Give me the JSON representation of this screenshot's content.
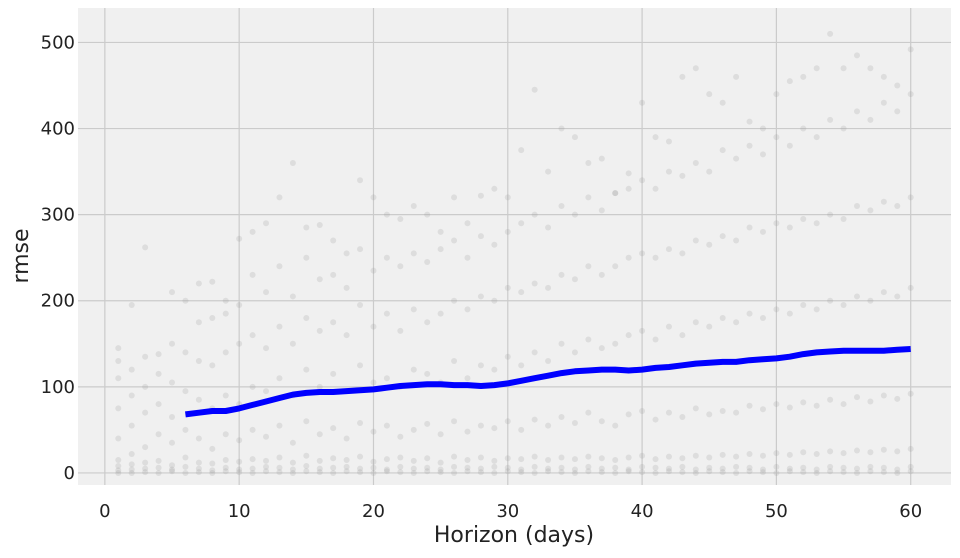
{
  "chart_data": {
    "type": "scatter",
    "title": "",
    "xlabel": "Horizon (days)",
    "ylabel": "rmse",
    "xlim": [
      -2,
      63
    ],
    "ylim": [
      -14,
      540
    ],
    "xticks": [
      0,
      10,
      20,
      30,
      40,
      50,
      60
    ],
    "yticks": [
      0,
      100,
      200,
      300,
      400,
      500
    ],
    "grid": true,
    "legend": "none",
    "colors": {
      "background": "#f0f0f0",
      "grid": "#cbcbcb",
      "points": "#999999",
      "line": "#0000ff"
    },
    "series": [
      {
        "kind": "scatter",
        "x": [
          1,
          1,
          1,
          1,
          1,
          1,
          1,
          1,
          1,
          2,
          2,
          2,
          2,
          2,
          2,
          2,
          2,
          3,
          3,
          3,
          3,
          3,
          3,
          3,
          3,
          4,
          4,
          4,
          4,
          4,
          4,
          4,
          5,
          5,
          5,
          5,
          5,
          5,
          5,
          5,
          6,
          6,
          6,
          6,
          6,
          6,
          6,
          7,
          7,
          7,
          7,
          7,
          7,
          7,
          7,
          8,
          8,
          8,
          8,
          8,
          8,
          8,
          8,
          9,
          9,
          9,
          9,
          9,
          9,
          9,
          9,
          10,
          10,
          10,
          10,
          10,
          10,
          10,
          10,
          11,
          11,
          11,
          11,
          11,
          11,
          11,
          11,
          12,
          12,
          12,
          12,
          12,
          12,
          12,
          12,
          13,
          13,
          13,
          13,
          13,
          13,
          13,
          13,
          14,
          14,
          14,
          14,
          14,
          14,
          14,
          14,
          15,
          15,
          15,
          15,
          15,
          15,
          15,
          15,
          16,
          16,
          16,
          16,
          16,
          16,
          16,
          16,
          17,
          17,
          17,
          17,
          17,
          17,
          17,
          17,
          18,
          18,
          18,
          18,
          18,
          18,
          18,
          18,
          19,
          19,
          19,
          19,
          19,
          19,
          19,
          19,
          20,
          20,
          20,
          20,
          20,
          20,
          20,
          20,
          21,
          21,
          21,
          21,
          21,
          21,
          21,
          21,
          22,
          22,
          22,
          22,
          22,
          22,
          22,
          22,
          23,
          23,
          23,
          23,
          23,
          23,
          23,
          23,
          24,
          24,
          24,
          24,
          24,
          24,
          24,
          24,
          25,
          25,
          25,
          25,
          25,
          25,
          25,
          25,
          26,
          26,
          26,
          26,
          26,
          26,
          26,
          26,
          27,
          27,
          27,
          27,
          27,
          27,
          27,
          27,
          28,
          28,
          28,
          28,
          28,
          28,
          28,
          28,
          29,
          29,
          29,
          29,
          29,
          29,
          29,
          29,
          30,
          30,
          30,
          30,
          30,
          30,
          30,
          30,
          31,
          31,
          31,
          31,
          31,
          31,
          31,
          31,
          32,
          32,
          32,
          32,
          32,
          32,
          32,
          32,
          33,
          33,
          33,
          33,
          33,
          33,
          33,
          33,
          34,
          34,
          34,
          34,
          34,
          34,
          34,
          34,
          35,
          35,
          35,
          35,
          35,
          35,
          35,
          35,
          36,
          36,
          36,
          36,
          36,
          36,
          36,
          36,
          37,
          37,
          37,
          37,
          37,
          37,
          37,
          37,
          38,
          38,
          38,
          38,
          38,
          38,
          38,
          38,
          39,
          39,
          39,
          39,
          39,
          39,
          39,
          39,
          40,
          40,
          40,
          40,
          40,
          40,
          40,
          40,
          41,
          41,
          41,
          41,
          41,
          41,
          41,
          41,
          42,
          42,
          42,
          42,
          42,
          42,
          42,
          42,
          43,
          43,
          43,
          43,
          43,
          43,
          43,
          43,
          44,
          44,
          44,
          44,
          44,
          44,
          44,
          44,
          45,
          45,
          45,
          45,
          45,
          45,
          45,
          45,
          46,
          46,
          46,
          46,
          46,
          46,
          46,
          46,
          47,
          47,
          47,
          47,
          47,
          47,
          47,
          47,
          48,
          48,
          48,
          48,
          48,
          48,
          48,
          48,
          49,
          49,
          49,
          49,
          49,
          49,
          49,
          49,
          50,
          50,
          50,
          50,
          50,
          50,
          50,
          50,
          51,
          51,
          51,
          51,
          51,
          51,
          51,
          51,
          52,
          52,
          52,
          52,
          52,
          52,
          52,
          52,
          53,
          53,
          53,
          53,
          53,
          53,
          53,
          53,
          54,
          54,
          54,
          54,
          54,
          54,
          54,
          54,
          55,
          55,
          55,
          55,
          55,
          55,
          55,
          55,
          56,
          56,
          56,
          56,
          56,
          56,
          56,
          56,
          57,
          57,
          57,
          57,
          57,
          57,
          57,
          57,
          58,
          58,
          58,
          58,
          58,
          58,
          58,
          58,
          59,
          59,
          59,
          59,
          59,
          59,
          59,
          59,
          60,
          60,
          60,
          60,
          60,
          60,
          60,
          60
        ],
        "y": [
          0,
          3,
          8,
          15,
          40,
          75,
          110,
          130,
          145,
          0,
          4,
          10,
          22,
          55,
          90,
          120,
          195,
          1,
          5,
          12,
          30,
          70,
          100,
          135,
          262,
          0,
          6,
          14,
          45,
          80,
          115,
          138,
          2,
          4,
          9,
          35,
          65,
          105,
          150,
          210,
          0,
          7,
          18,
          50,
          95,
          140,
          200,
          1,
          5,
          12,
          40,
          85,
          130,
          175,
          220,
          0,
          3,
          11,
          28,
          75,
          125,
          180,
          222,
          2,
          6,
          15,
          45,
          90,
          140,
          185,
          200,
          1,
          4,
          13,
          38,
          80,
          150,
          195,
          272,
          0,
          5,
          16,
          50,
          100,
          160,
          230,
          280,
          2,
          7,
          14,
          42,
          95,
          145,
          210,
          290,
          1,
          6,
          18,
          55,
          110,
          170,
          240,
          320,
          0,
          4,
          12,
          35,
          90,
          150,
          205,
          360,
          2,
          8,
          20,
          60,
          120,
          180,
          250,
          285,
          1,
          5,
          14,
          45,
          100,
          165,
          225,
          288,
          0,
          6,
          17,
          52,
          115,
          175,
          230,
          270,
          2,
          7,
          15,
          40,
          95,
          160,
          215,
          255,
          1,
          5,
          19,
          58,
          125,
          195,
          260,
          340,
          0,
          6,
          13,
          48,
          105,
          170,
          235,
          320,
          2,
          4,
          16,
          55,
          110,
          185,
          250,
          300,
          1,
          7,
          18,
          42,
          100,
          165,
          240,
          295,
          0,
          5,
          14,
          50,
          120,
          190,
          255,
          310,
          2,
          6,
          17,
          57,
          115,
          175,
          245,
          300,
          1,
          4,
          12,
          45,
          105,
          185,
          260,
          280,
          0,
          7,
          19,
          60,
          130,
          200,
          270,
          320,
          2,
          6,
          15,
          48,
          110,
          190,
          250,
          290,
          1,
          5,
          18,
          55,
          125,
          205,
          275,
          322,
          0,
          7,
          14,
          52,
          120,
          200,
          265,
          330,
          2,
          6,
          17,
          60,
          135,
          215,
          280,
          320,
          1,
          4,
          16,
          50,
          125,
          210,
          290,
          375,
          0,
          7,
          19,
          62,
          140,
          220,
          300,
          445,
          2,
          5,
          15,
          55,
          130,
          215,
          285,
          350,
          1,
          6,
          18,
          65,
          150,
          230,
          310,
          400,
          0,
          4,
          16,
          58,
          140,
          225,
          300,
          390,
          2,
          7,
          19,
          70,
          155,
          240,
          320,
          360,
          1,
          5,
          17,
          60,
          145,
          230,
          305,
          365,
          0,
          6,
          15,
          55,
          150,
          240,
          325,
          325,
          2,
          4,
          18,
          68,
          160,
          250,
          330,
          348,
          1,
          7,
          20,
          72,
          165,
          255,
          340,
          430,
          0,
          6,
          16,
          62,
          155,
          250,
          330,
          390,
          2,
          5,
          19,
          70,
          170,
          260,
          350,
          385,
          1,
          7,
          17,
          65,
          160,
          255,
          345,
          460,
          0,
          4,
          20,
          75,
          175,
          270,
          360,
          470,
          2,
          6,
          18,
          68,
          170,
          265,
          350,
          440,
          1,
          5,
          21,
          72,
          180,
          275,
          375,
          430,
          0,
          7,
          19,
          70,
          175,
          270,
          365,
          460,
          2,
          6,
          22,
          78,
          185,
          285,
          380,
          408,
          1,
          4,
          20,
          74,
          180,
          280,
          370,
          400,
          0,
          7,
          23,
          80,
          190,
          290,
          390,
          440,
          2,
          5,
          21,
          76,
          185,
          285,
          380,
          455,
          1,
          6,
          24,
          82,
          195,
          295,
          400,
          460,
          0,
          4,
          22,
          78,
          190,
          290,
          390,
          470,
          2,
          7,
          25,
          85,
          200,
          300,
          410,
          510,
          1,
          6,
          23,
          80,
          195,
          295,
          400,
          470,
          0,
          5,
          26,
          88,
          205,
          310,
          420,
          485,
          2,
          7,
          24,
          83,
          200,
          305,
          410,
          470,
          1,
          6,
          27,
          90,
          210,
          315,
          430,
          460,
          0,
          4,
          25,
          86,
          205,
          310,
          420,
          450,
          2,
          7,
          28,
          92,
          215,
          320,
          440,
          492
        ]
      },
      {
        "kind": "line",
        "x": [
          6,
          7,
          8,
          9,
          10,
          11,
          12,
          13,
          14,
          15,
          16,
          17,
          18,
          19,
          20,
          21,
          22,
          23,
          24,
          25,
          26,
          27,
          28,
          29,
          30,
          31,
          32,
          33,
          34,
          35,
          36,
          37,
          38,
          39,
          40,
          41,
          42,
          43,
          44,
          45,
          46,
          47,
          48,
          49,
          50,
          51,
          52,
          53,
          54,
          55,
          56,
          57,
          58,
          59,
          60
        ],
        "y": [
          68,
          70,
          72,
          72,
          75,
          79,
          83,
          87,
          91,
          93,
          94,
          94,
          95,
          96,
          97,
          99,
          101,
          102,
          103,
          103,
          102,
          102,
          101,
          102,
          104,
          107,
          110,
          113,
          116,
          118,
          119,
          120,
          120,
          119,
          120,
          122,
          123,
          125,
          127,
          128,
          129,
          129,
          131,
          132,
          133,
          135,
          138,
          140,
          141,
          142,
          142,
          142,
          142,
          143,
          144
        ]
      }
    ]
  }
}
